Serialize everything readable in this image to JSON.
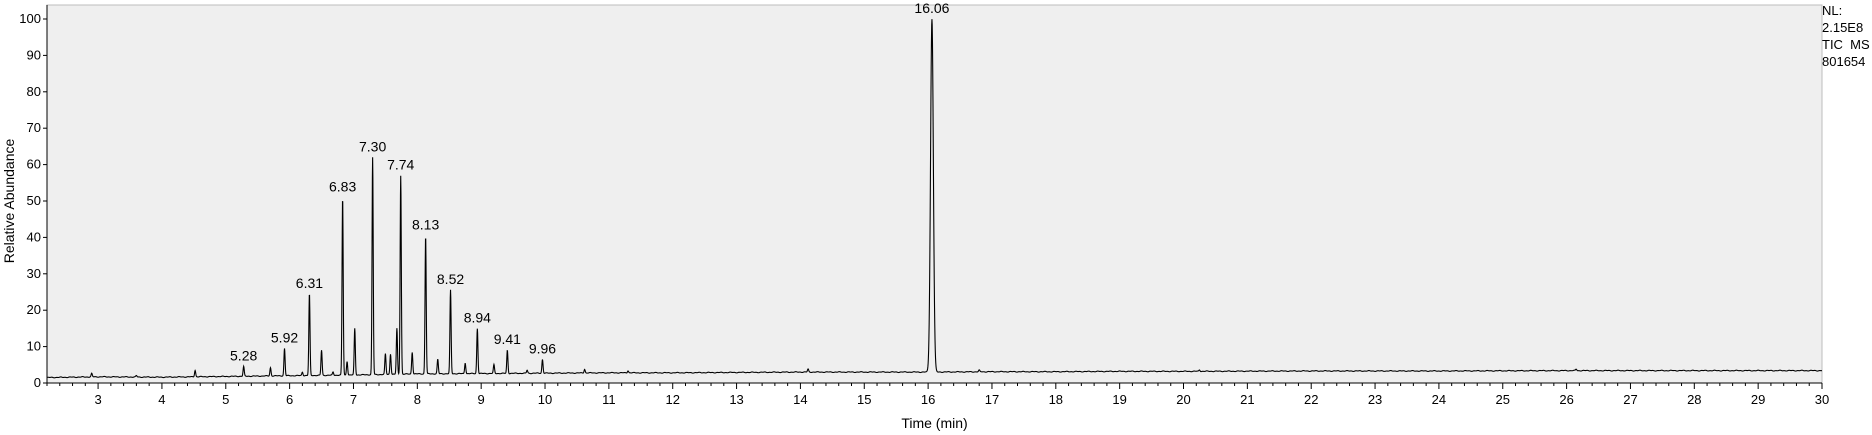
{
  "info_block": {
    "line1": "NL:",
    "line2": "2.15E8",
    "line3": "TIC  MS",
    "line4": "801654"
  },
  "colors": {
    "plot_background": "#efefef",
    "trace": "#000000",
    "axis": "#000000"
  },
  "chart_data": {
    "type": "line",
    "title": "",
    "xlabel": "Time (min)",
    "ylabel": "Relative Abundance",
    "xlim": [
      2.2,
      30.0
    ],
    "ylim": [
      0,
      100
    ],
    "x_ticks": [
      3,
      4,
      5,
      6,
      7,
      8,
      9,
      10,
      11,
      12,
      13,
      14,
      15,
      16,
      17,
      18,
      19,
      20,
      21,
      22,
      23,
      24,
      25,
      26,
      27,
      28,
      29,
      30
    ],
    "y_ticks": [
      0,
      10,
      20,
      30,
      40,
      50,
      60,
      70,
      80,
      90,
      100
    ],
    "grid": false,
    "legend": "none",
    "baseline": [
      [
        2.2,
        1.5
      ],
      [
        3.0,
        1.7
      ],
      [
        4.0,
        1.6
      ],
      [
        5.0,
        1.8
      ],
      [
        6.0,
        2.0
      ],
      [
        7.0,
        2.2
      ],
      [
        8.0,
        2.5
      ],
      [
        9.0,
        2.6
      ],
      [
        10.0,
        2.7
      ],
      [
        11.0,
        2.8
      ],
      [
        12.0,
        2.8
      ],
      [
        13.0,
        2.9
      ],
      [
        14.0,
        3.0
      ],
      [
        15.0,
        3.0
      ],
      [
        16.0,
        3.0
      ],
      [
        17.0,
        3.1
      ],
      [
        18.0,
        3.1
      ],
      [
        19.0,
        3.2
      ],
      [
        20.0,
        3.2
      ],
      [
        22.0,
        3.3
      ],
      [
        24.0,
        3.3
      ],
      [
        26.0,
        3.4
      ],
      [
        28.0,
        3.4
      ],
      [
        30.0,
        3.4
      ]
    ],
    "peaks": [
      {
        "rt": 2.9,
        "height": 2.6,
        "label": ""
      },
      {
        "rt": 3.6,
        "height": 2.0,
        "label": ""
      },
      {
        "rt": 4.52,
        "height": 3.5,
        "label": ""
      },
      {
        "rt": 5.28,
        "height": 4.5,
        "label": "5.28"
      },
      {
        "rt": 5.7,
        "height": 4.2,
        "label": ""
      },
      {
        "rt": 5.92,
        "height": 9.5,
        "label": "5.92"
      },
      {
        "rt": 6.2,
        "height": 3.0,
        "label": ""
      },
      {
        "rt": 6.31,
        "height": 24.5,
        "label": "6.31"
      },
      {
        "rt": 6.5,
        "height": 9.0,
        "label": ""
      },
      {
        "rt": 6.68,
        "height": 3.0,
        "label": ""
      },
      {
        "rt": 6.83,
        "height": 51.0,
        "label": "6.83"
      },
      {
        "rt": 6.9,
        "height": 6.0,
        "label": ""
      },
      {
        "rt": 7.02,
        "height": 15.0,
        "label": ""
      },
      {
        "rt": 7.3,
        "height": 62.0,
        "label": "7.30"
      },
      {
        "rt": 7.5,
        "height": 8.0,
        "label": ""
      },
      {
        "rt": 7.58,
        "height": 8.0,
        "label": ""
      },
      {
        "rt": 7.68,
        "height": 15.0,
        "label": ""
      },
      {
        "rt": 7.74,
        "height": 57.0,
        "label": "7.74"
      },
      {
        "rt": 7.92,
        "height": 8.5,
        "label": ""
      },
      {
        "rt": 8.13,
        "height": 40.5,
        "label": "8.13"
      },
      {
        "rt": 8.32,
        "height": 6.5,
        "label": ""
      },
      {
        "rt": 8.52,
        "height": 25.5,
        "label": "8.52"
      },
      {
        "rt": 8.75,
        "height": 5.5,
        "label": ""
      },
      {
        "rt": 8.94,
        "height": 15.0,
        "label": "8.94"
      },
      {
        "rt": 9.2,
        "height": 5.0,
        "label": ""
      },
      {
        "rt": 9.41,
        "height": 9.0,
        "label": "9.41"
      },
      {
        "rt": 9.72,
        "height": 3.5,
        "label": ""
      },
      {
        "rt": 9.96,
        "height": 6.5,
        "label": "9.96"
      },
      {
        "rt": 10.62,
        "height": 3.8,
        "label": ""
      },
      {
        "rt": 11.3,
        "height": 3.4,
        "label": ""
      },
      {
        "rt": 14.12,
        "height": 3.8,
        "label": ""
      },
      {
        "rt": 16.06,
        "height": 100.0,
        "label": "16.06"
      },
      {
        "rt": 16.8,
        "height": 3.5,
        "label": ""
      },
      {
        "rt": 20.25,
        "height": 3.6,
        "label": ""
      },
      {
        "rt": 26.15,
        "height": 3.8,
        "label": ""
      }
    ]
  }
}
